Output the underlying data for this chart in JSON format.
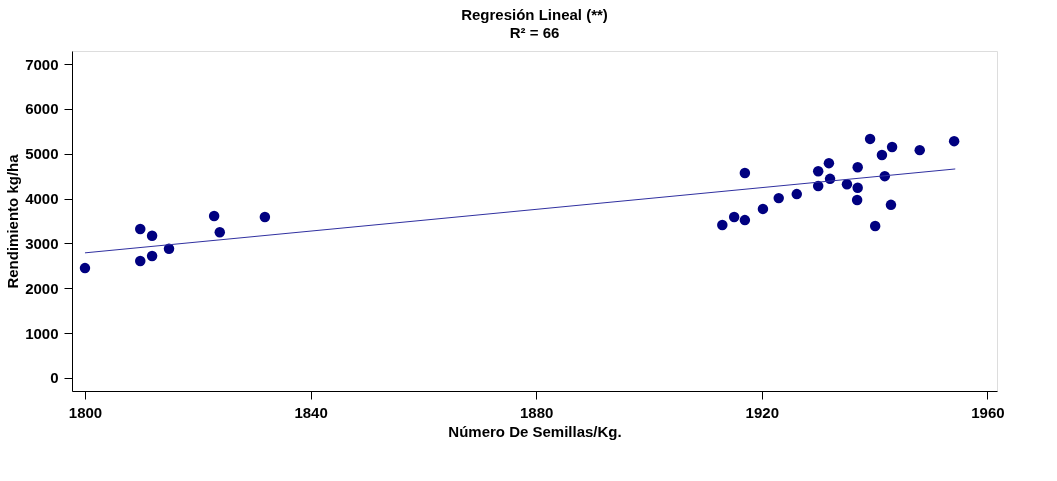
{
  "chart_data": {
    "type": "scatter",
    "title": "Regresión Lineal (**)",
    "subtitle": "R² = 66",
    "xlabel": "Número De Semillas/Kg.",
    "ylabel": "Rendimiento kg/ha",
    "xlim": [
      1797.7,
      1961.7
    ],
    "ylim": [
      -290,
      7290
    ],
    "xticks": [
      1800,
      1840,
      1880,
      1920,
      1960
    ],
    "yticks": [
      0,
      1000,
      2000,
      3000,
      4000,
      5000,
      6000,
      7000
    ],
    "grid": false,
    "marker": "circle",
    "series": [
      {
        "color": "#000080",
        "x": [
          1800,
          1809.8,
          1809.8,
          1811.9,
          1811.9,
          1814.9,
          1822.9,
          1823.9,
          1831.9,
          1913,
          1915.1,
          1917,
          1917,
          1920.2,
          1923,
          1926.2,
          1930,
          1930,
          1931.9,
          1932.1,
          1935.1,
          1936.9,
          1937,
          1937,
          1939.2,
          1940.1,
          1941.3,
          1941.8,
          1942.9,
          1943.1,
          1948,
          1954.1
        ],
        "values": [
          2450,
          2610,
          3320,
          3170,
          2720,
          2880,
          3610,
          3250,
          3590,
          3410,
          3590,
          3520,
          4570,
          3770,
          4010,
          4100,
          4610,
          4280,
          4790,
          4440,
          4320,
          3970,
          4240,
          4700,
          5330,
          3390,
          4970,
          4500,
          3860,
          5150,
          5080,
          5280
        ]
      },
      {
        "type": "line",
        "marker": "none",
        "color": "#3030a0",
        "x": [
          1800,
          1954.3
        ],
        "values": [
          2790,
          4660
        ]
      }
    ]
  }
}
